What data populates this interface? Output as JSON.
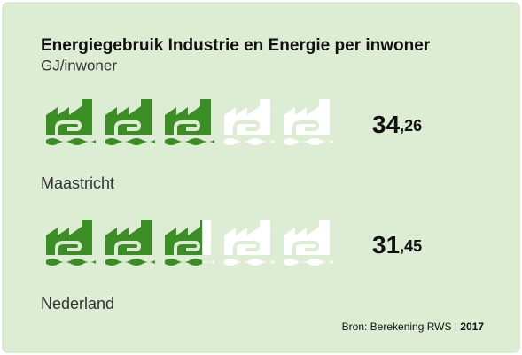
{
  "chart_data": {
    "type": "pictogram",
    "title": "Energiegebruik Industrie en Energie per inwoner",
    "subtitle": "GJ/inwoner",
    "categories": [
      "Maastricht",
      "Nederland"
    ],
    "values": [
      34.26,
      31.45
    ],
    "value_labels": [
      "34,26",
      "31,45"
    ],
    "xlim": [
      0,
      57.1
    ],
    "color": "#3b8e23",
    "source": "Bron: Berekening RWS |",
    "year": "2017"
  }
}
